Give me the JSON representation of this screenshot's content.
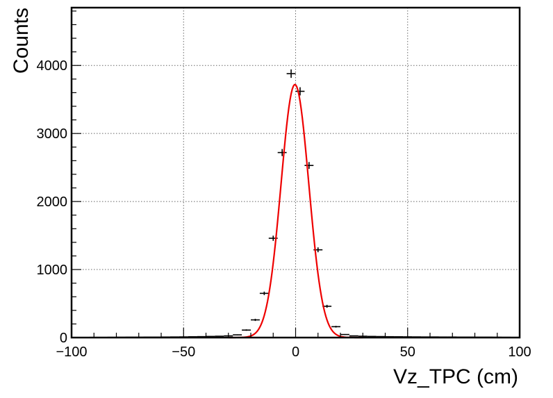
{
  "chart_data": {
    "type": "scatter",
    "title": "",
    "xlabel": "Vz_TPC (cm)",
    "ylabel": "Counts",
    "xlim": [
      -100,
      100
    ],
    "ylim": [
      0,
      4850
    ],
    "x_ticks": [
      -100,
      -50,
      0,
      50,
      100
    ],
    "x_tick_labels": [
      "−100",
      "−50",
      "0",
      "50",
      "100"
    ],
    "y_ticks": [
      0,
      1000,
      2000,
      3000,
      4000
    ],
    "y_tick_labels": [
      "0",
      "1000",
      "2000",
      "3000",
      "4000"
    ],
    "grid": true,
    "bin_width": 4,
    "histogram": {
      "x": [
        -98,
        -94,
        -90,
        -86,
        -82,
        -78,
        -74,
        -70,
        -66,
        -62,
        -58,
        -54,
        -50,
        -46,
        -42,
        -38,
        -34,
        -30,
        -26,
        -22,
        -18,
        -14,
        -10,
        -6,
        -2,
        2,
        6,
        10,
        14,
        18,
        22,
        26,
        30,
        34,
        38,
        42,
        46,
        50,
        54,
        58,
        62,
        66,
        70,
        74,
        78,
        82,
        86,
        90,
        94,
        98
      ],
      "y": [
        2,
        2,
        3,
        3,
        4,
        5,
        6,
        6,
        7,
        7,
        8,
        9,
        10,
        12,
        14,
        17,
        20,
        25,
        40,
        110,
        260,
        650,
        1460,
        2720,
        3880,
        3620,
        2530,
        1290,
        460,
        160,
        45,
        25,
        20,
        17,
        15,
        13,
        12,
        11,
        10,
        9,
        9,
        8,
        8,
        7,
        7,
        6,
        6,
        5,
        4,
        3
      ],
      "color": "#000000"
    },
    "fit": {
      "model": "gaussian",
      "amplitude": 3720,
      "mean": -0.3,
      "sigma": 6.2,
      "x_range": [
        -30,
        30
      ],
      "color": "#ee0000"
    }
  }
}
